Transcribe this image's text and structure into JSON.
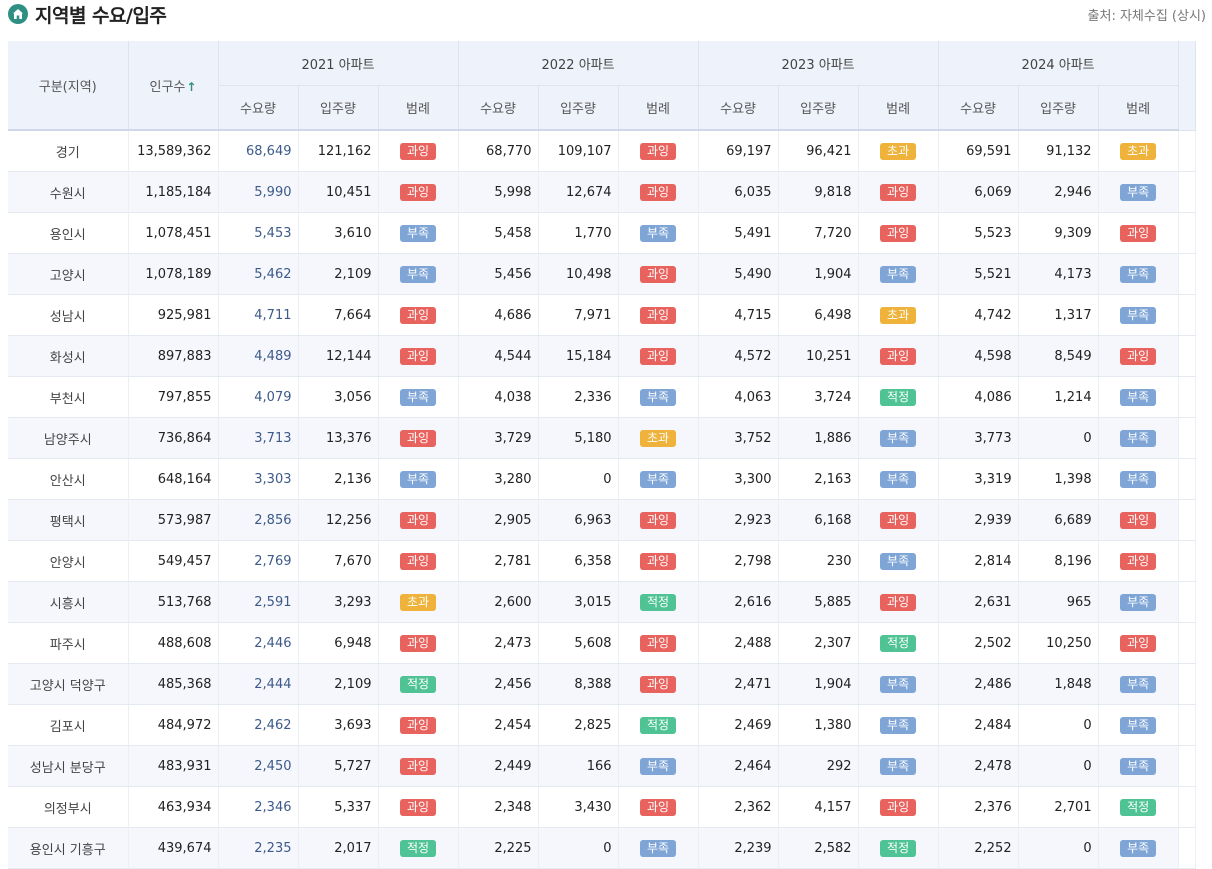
{
  "header": {
    "title": "지역별 수요/입주",
    "source": "출처: 자체수집 (상시)",
    "home_icon": "home-icon"
  },
  "columns": {
    "region": "구분(지역)",
    "population": "인구수",
    "years": [
      "2021 아파트",
      "2022 아파트",
      "2023 아파트",
      "2024 아파트"
    ],
    "demand": "수요량",
    "supply": "입주량",
    "legend": "범례"
  },
  "badge_colors": {
    "과잉": "#e8625e",
    "부족": "#7ea5d6",
    "초과": "#efb23a",
    "적정": "#4fc394"
  },
  "rows": [
    {
      "region": "경기",
      "population": "13,589,362",
      "years": [
        [
          "68,649",
          "121,162",
          "과잉"
        ],
        [
          "68,770",
          "109,107",
          "과잉"
        ],
        [
          "69,197",
          "96,421",
          "초과"
        ],
        [
          "69,591",
          "91,132",
          "초과"
        ]
      ]
    },
    {
      "region": "수원시",
      "population": "1,185,184",
      "years": [
        [
          "5,990",
          "10,451",
          "과잉"
        ],
        [
          "5,998",
          "12,674",
          "과잉"
        ],
        [
          "6,035",
          "9,818",
          "과잉"
        ],
        [
          "6,069",
          "2,946",
          "부족"
        ]
      ]
    },
    {
      "region": "용인시",
      "population": "1,078,451",
      "years": [
        [
          "5,453",
          "3,610",
          "부족"
        ],
        [
          "5,458",
          "1,770",
          "부족"
        ],
        [
          "5,491",
          "7,720",
          "과잉"
        ],
        [
          "5,523",
          "9,309",
          "과잉"
        ]
      ]
    },
    {
      "region": "고양시",
      "population": "1,078,189",
      "years": [
        [
          "5,462",
          "2,109",
          "부족"
        ],
        [
          "5,456",
          "10,498",
          "과잉"
        ],
        [
          "5,490",
          "1,904",
          "부족"
        ],
        [
          "5,521",
          "4,173",
          "부족"
        ]
      ]
    },
    {
      "region": "성남시",
      "population": "925,981",
      "years": [
        [
          "4,711",
          "7,664",
          "과잉"
        ],
        [
          "4,686",
          "7,971",
          "과잉"
        ],
        [
          "4,715",
          "6,498",
          "초과"
        ],
        [
          "4,742",
          "1,317",
          "부족"
        ]
      ]
    },
    {
      "region": "화성시",
      "population": "897,883",
      "years": [
        [
          "4,489",
          "12,144",
          "과잉"
        ],
        [
          "4,544",
          "15,184",
          "과잉"
        ],
        [
          "4,572",
          "10,251",
          "과잉"
        ],
        [
          "4,598",
          "8,549",
          "과잉"
        ]
      ]
    },
    {
      "region": "부천시",
      "population": "797,855",
      "years": [
        [
          "4,079",
          "3,056",
          "부족"
        ],
        [
          "4,038",
          "2,336",
          "부족"
        ],
        [
          "4,063",
          "3,724",
          "적정"
        ],
        [
          "4,086",
          "1,214",
          "부족"
        ]
      ]
    },
    {
      "region": "남양주시",
      "population": "736,864",
      "years": [
        [
          "3,713",
          "13,376",
          "과잉"
        ],
        [
          "3,729",
          "5,180",
          "초과"
        ],
        [
          "3,752",
          "1,886",
          "부족"
        ],
        [
          "3,773",
          "0",
          "부족"
        ]
      ]
    },
    {
      "region": "안산시",
      "population": "648,164",
      "years": [
        [
          "3,303",
          "2,136",
          "부족"
        ],
        [
          "3,280",
          "0",
          "부족"
        ],
        [
          "3,300",
          "2,163",
          "부족"
        ],
        [
          "3,319",
          "1,398",
          "부족"
        ]
      ]
    },
    {
      "region": "평택시",
      "population": "573,987",
      "years": [
        [
          "2,856",
          "12,256",
          "과잉"
        ],
        [
          "2,905",
          "6,963",
          "과잉"
        ],
        [
          "2,923",
          "6,168",
          "과잉"
        ],
        [
          "2,939",
          "6,689",
          "과잉"
        ]
      ]
    },
    {
      "region": "안양시",
      "population": "549,457",
      "years": [
        [
          "2,769",
          "7,670",
          "과잉"
        ],
        [
          "2,781",
          "6,358",
          "과잉"
        ],
        [
          "2,798",
          "230",
          "부족"
        ],
        [
          "2,814",
          "8,196",
          "과잉"
        ]
      ]
    },
    {
      "region": "시흥시",
      "population": "513,768",
      "years": [
        [
          "2,591",
          "3,293",
          "초과"
        ],
        [
          "2,600",
          "3,015",
          "적정"
        ],
        [
          "2,616",
          "5,885",
          "과잉"
        ],
        [
          "2,631",
          "965",
          "부족"
        ]
      ]
    },
    {
      "region": "파주시",
      "population": "488,608",
      "years": [
        [
          "2,446",
          "6,948",
          "과잉"
        ],
        [
          "2,473",
          "5,608",
          "과잉"
        ],
        [
          "2,488",
          "2,307",
          "적정"
        ],
        [
          "2,502",
          "10,250",
          "과잉"
        ]
      ]
    },
    {
      "region": "고양시 덕양구",
      "population": "485,368",
      "years": [
        [
          "2,444",
          "2,109",
          "적정"
        ],
        [
          "2,456",
          "8,388",
          "과잉"
        ],
        [
          "2,471",
          "1,904",
          "부족"
        ],
        [
          "2,486",
          "1,848",
          "부족"
        ]
      ]
    },
    {
      "region": "김포시",
      "population": "484,972",
      "years": [
        [
          "2,462",
          "3,693",
          "과잉"
        ],
        [
          "2,454",
          "2,825",
          "적정"
        ],
        [
          "2,469",
          "1,380",
          "부족"
        ],
        [
          "2,484",
          "0",
          "부족"
        ]
      ]
    },
    {
      "region": "성남시 분당구",
      "population": "483,931",
      "years": [
        [
          "2,450",
          "5,727",
          "과잉"
        ],
        [
          "2,449",
          "166",
          "부족"
        ],
        [
          "2,464",
          "292",
          "부족"
        ],
        [
          "2,478",
          "0",
          "부족"
        ]
      ]
    },
    {
      "region": "의정부시",
      "population": "463,934",
      "years": [
        [
          "2,346",
          "5,337",
          "과잉"
        ],
        [
          "2,348",
          "3,430",
          "과잉"
        ],
        [
          "2,362",
          "4,157",
          "과잉"
        ],
        [
          "2,376",
          "2,701",
          "적정"
        ]
      ]
    },
    {
      "region": "용인시 기흥구",
      "population": "439,674",
      "years": [
        [
          "2,235",
          "2,017",
          "적정"
        ],
        [
          "2,225",
          "0",
          "부족"
        ],
        [
          "2,239",
          "2,582",
          "적정"
        ],
        [
          "2,252",
          "0",
          "부족"
        ]
      ]
    }
  ]
}
